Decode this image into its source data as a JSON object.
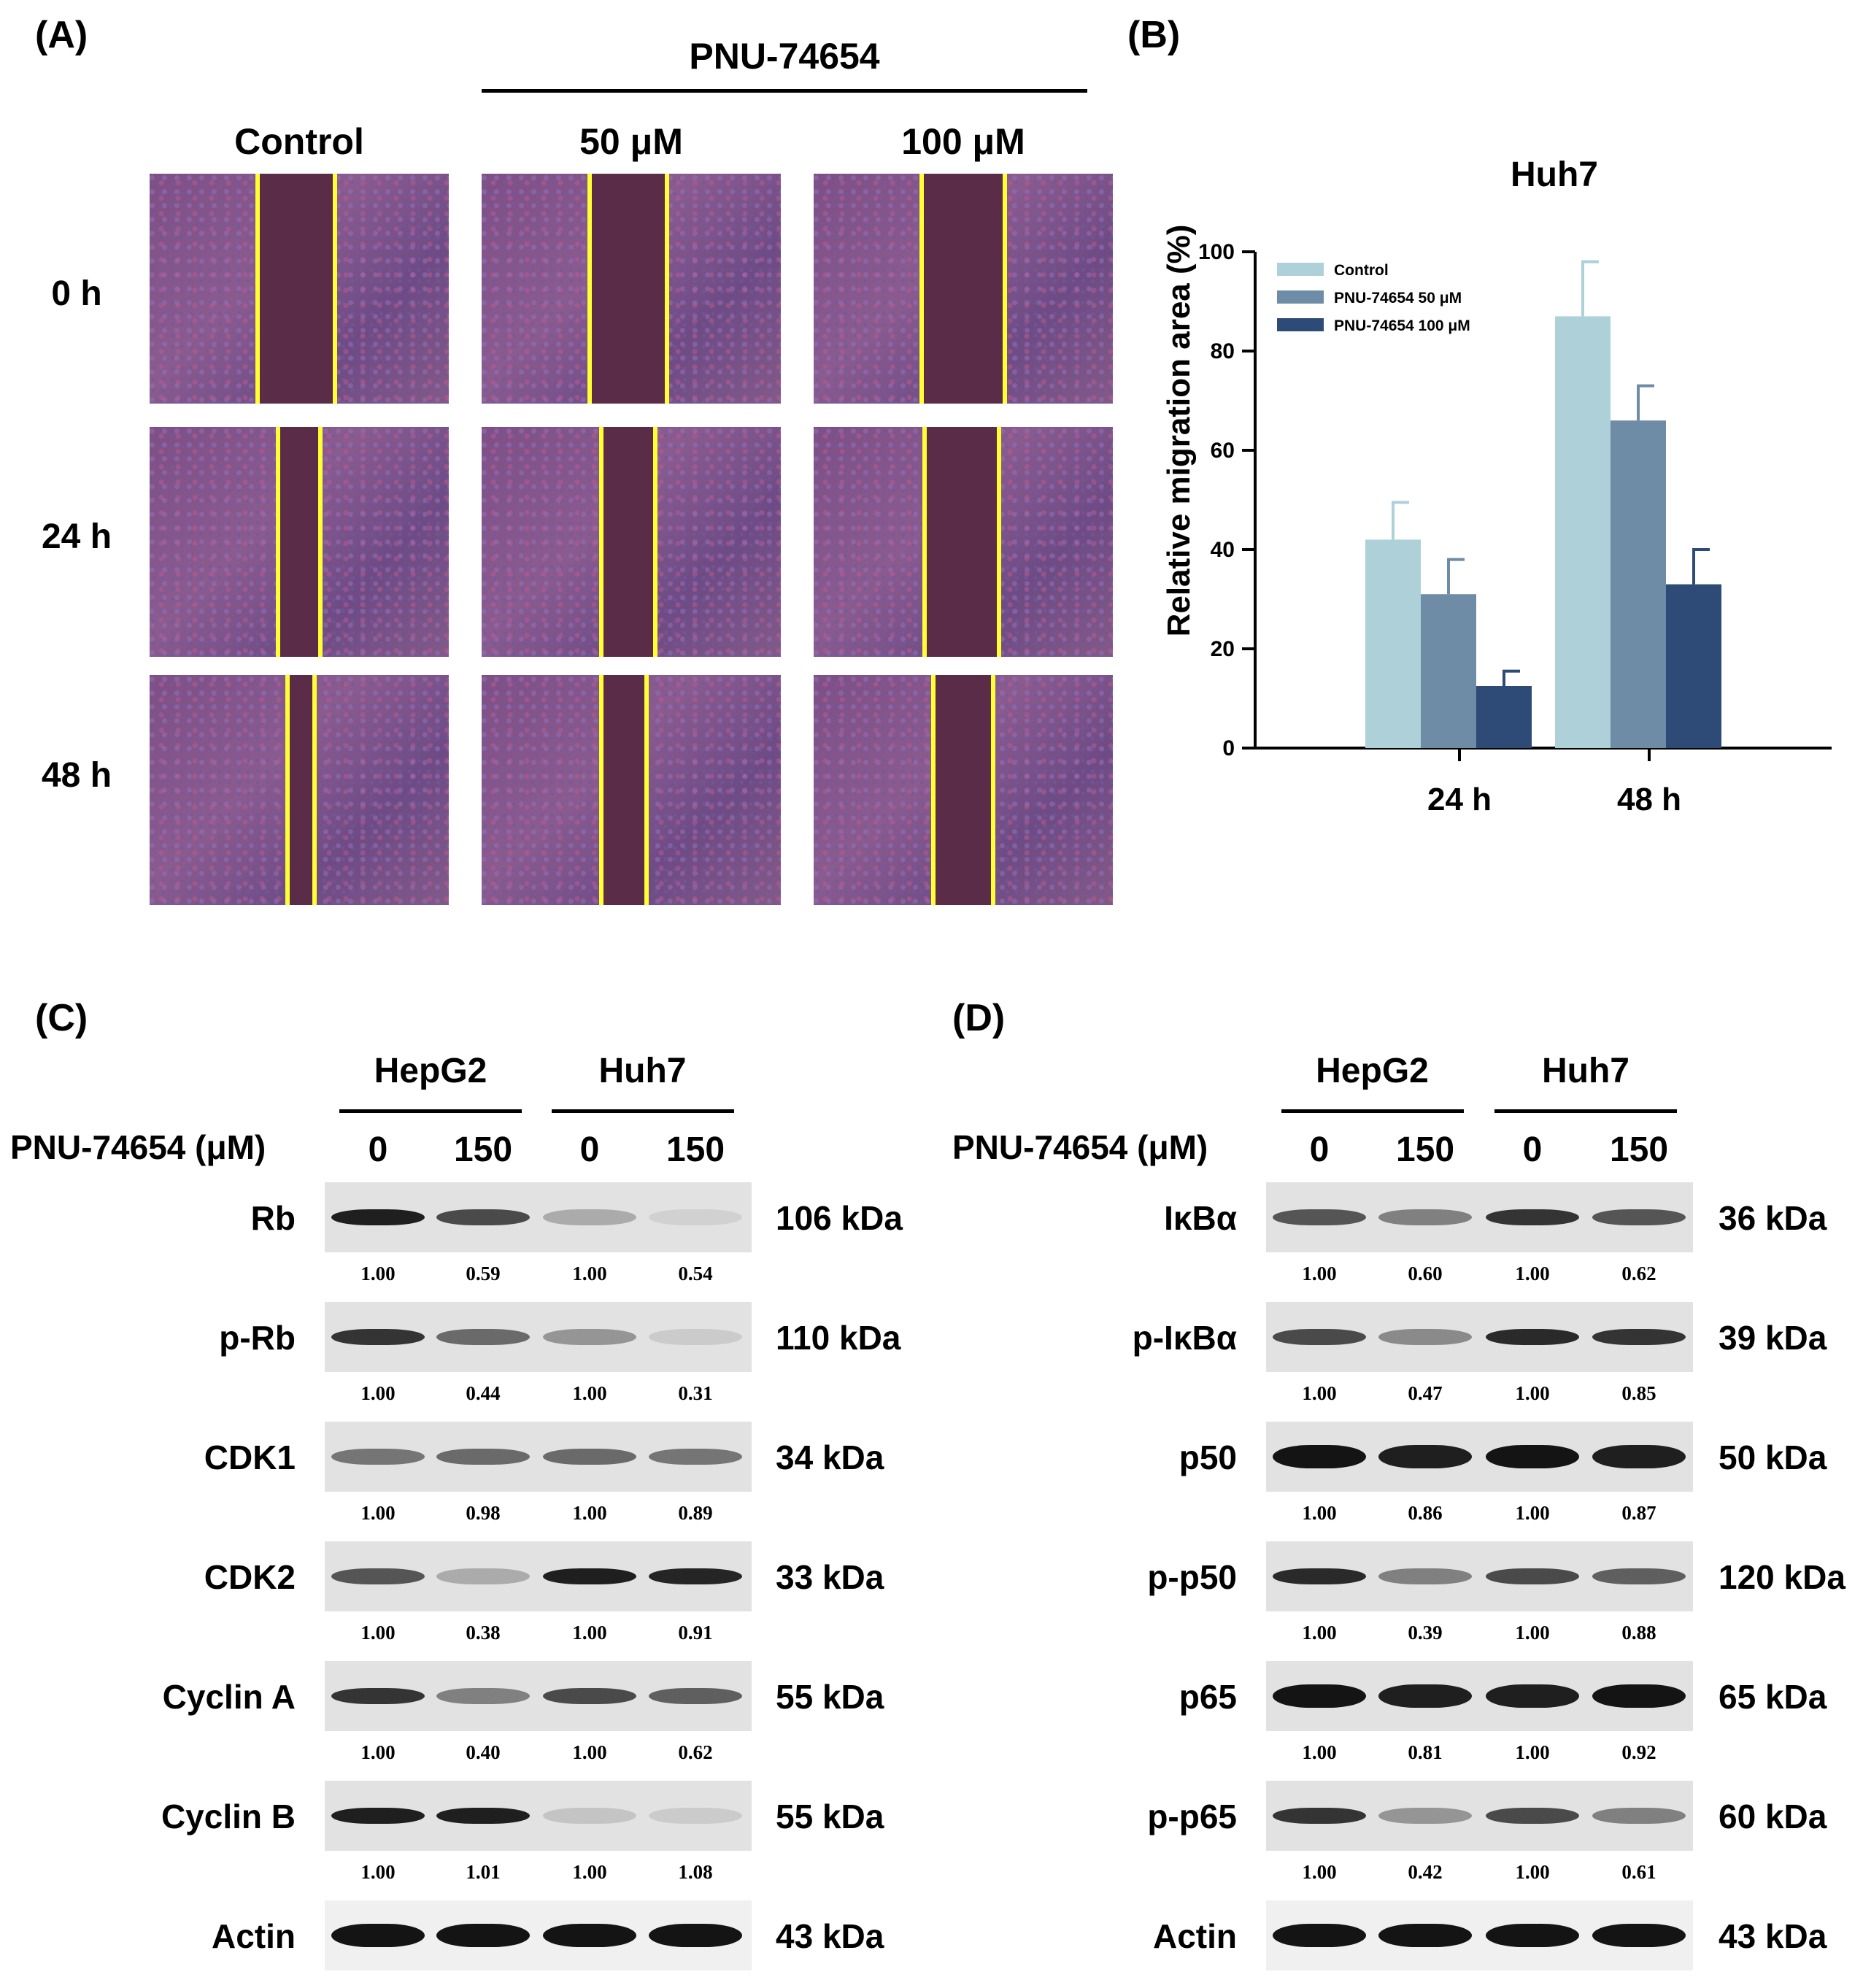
{
  "panels": {
    "a": "(A)",
    "b": "(B)",
    "c": "(C)",
    "d": "(D)"
  },
  "panel_a": {
    "drug": "PNU-74654",
    "columns": [
      "Control",
      "50 μM",
      "100 μM"
    ],
    "rows": [
      "0 h",
      "24 h",
      "48 h"
    ]
  },
  "chart_data": {
    "type": "bar",
    "title": "Huh7",
    "xlabel": "",
    "ylabel": "Relative migration area (%)",
    "ylim": [
      0,
      100
    ],
    "yticks": [
      0,
      20,
      40,
      60,
      80,
      100
    ],
    "categories": [
      "24 h",
      "48 h"
    ],
    "legend_position": "top-left",
    "series": [
      {
        "name": "Control",
        "values": [
          42,
          87
        ],
        "errors": [
          7.5,
          11
        ],
        "color": "#add0d9"
      },
      {
        "name": "PNU-74654 50 μM",
        "values": [
          31,
          66
        ],
        "errors": [
          7,
          7
        ],
        "color": "#6e8ca6"
      },
      {
        "name": "PNU-74654 100 μM",
        "values": [
          12.5,
          33
        ],
        "errors": [
          3,
          7
        ],
        "color": "#2e4b77"
      }
    ]
  },
  "panel_c": {
    "treatment_label": "PNU-74654 (μM)",
    "cells": [
      "HepG2",
      "Huh7"
    ],
    "lanes": [
      "0",
      "150",
      "0",
      "150"
    ],
    "blots": [
      {
        "name": "Rb",
        "kda": "106 kDa",
        "quant": [
          "1.00",
          "0.59",
          "1.00",
          "0.54"
        ],
        "intensity": [
          0.95,
          0.75,
          0.3,
          0.12
        ]
      },
      {
        "name": "p-Rb",
        "kda": "110 kDa",
        "quant": [
          "1.00",
          "0.44",
          "1.00",
          "0.31"
        ],
        "intensity": [
          0.85,
          0.6,
          0.4,
          0.15
        ]
      },
      {
        "name": "CDK1",
        "kda": "34 kDa",
        "quant": [
          "1.00",
          "0.98",
          "1.00",
          "0.89"
        ],
        "intensity": [
          0.55,
          0.6,
          0.6,
          0.55
        ]
      },
      {
        "name": "CDK2",
        "kda": "33 kDa",
        "quant": [
          "1.00",
          "0.38",
          "1.00",
          "0.91"
        ],
        "intensity": [
          0.7,
          0.3,
          0.95,
          0.92
        ]
      },
      {
        "name": "Cyclin A",
        "kda": "55 kDa",
        "quant": [
          "1.00",
          "0.40",
          "1.00",
          "0.62"
        ],
        "intensity": [
          0.85,
          0.5,
          0.75,
          0.65
        ]
      },
      {
        "name": "Cyclin B",
        "kda": "55 kDa",
        "quant": [
          "1.00",
          "1.01",
          "1.00",
          "1.08"
        ],
        "intensity": [
          0.95,
          0.95,
          0.18,
          0.15
        ]
      },
      {
        "name": "Actin",
        "kda": "43 kDa",
        "quant": [
          "",
          "",
          "",
          ""
        ],
        "intensity": [
          1,
          1,
          1,
          1
        ]
      }
    ]
  },
  "panel_d": {
    "treatment_label": "PNU-74654 (μM)",
    "cells": [
      "HepG2",
      "Huh7"
    ],
    "lanes": [
      "0",
      "150",
      "0",
      "150"
    ],
    "blots": [
      {
        "name": "IκBα",
        "kda": "36 kDa",
        "quant": [
          "1.00",
          "0.60",
          "1.00",
          "0.62"
        ],
        "intensity": [
          0.7,
          0.5,
          0.85,
          0.7
        ]
      },
      {
        "name": "p-IκBα",
        "kda": "39 kDa",
        "quant": [
          "1.00",
          "0.47",
          "1.00",
          "0.85"
        ],
        "intensity": [
          0.75,
          0.45,
          0.9,
          0.85
        ]
      },
      {
        "name": "p50",
        "kda": "50 kDa",
        "quant": [
          "1.00",
          "0.86",
          "1.00",
          "0.87"
        ],
        "intensity": [
          1,
          0.95,
          1,
          0.95
        ]
      },
      {
        "name": "p-p50",
        "kda": "120 kDa",
        "quant": [
          "1.00",
          "0.39",
          "1.00",
          "0.88"
        ],
        "intensity": [
          0.9,
          0.5,
          0.75,
          0.65
        ]
      },
      {
        "name": "p65",
        "kda": "65 kDa",
        "quant": [
          "1.00",
          "0.81",
          "1.00",
          "0.92"
        ],
        "intensity": [
          1,
          0.95,
          0.95,
          1
        ]
      },
      {
        "name": "p-p65",
        "kda": "60 kDa",
        "quant": [
          "1.00",
          "0.42",
          "1.00",
          "0.61"
        ],
        "intensity": [
          0.85,
          0.4,
          0.75,
          0.5
        ]
      },
      {
        "name": "Actin",
        "kda": "43 kDa",
        "quant": [
          "",
          "",
          "",
          ""
        ],
        "intensity": [
          1,
          1,
          1,
          1
        ]
      }
    ]
  }
}
